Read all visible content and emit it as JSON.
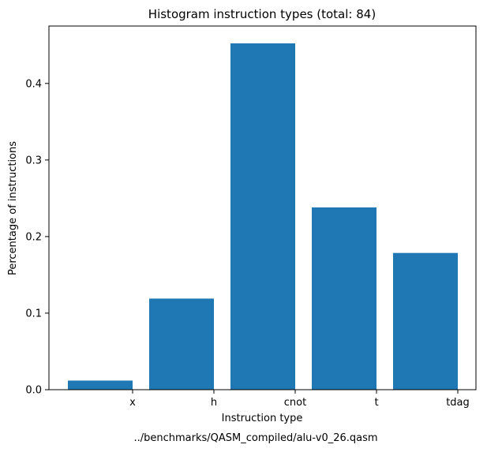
{
  "chart_data": {
    "type": "bar",
    "title": "Histogram instruction types (total: 84)",
    "xlabel": "Instruction type",
    "ylabel": "Percentage of instructions",
    "caption": "../benchmarks/QASM_compiled/alu-v0_26.qasm",
    "categories": [
      "x",
      "h",
      "cnot",
      "t",
      "tdag"
    ],
    "values": [
      0.0119,
      0.119,
      0.4524,
      0.2381,
      0.1786
    ],
    "ylim": [
      0,
      0.475
    ],
    "yticks": [
      0.0,
      0.1,
      0.2,
      0.3,
      0.4
    ],
    "ytick_labels": [
      "0.0",
      "0.1",
      "0.2",
      "0.3",
      "0.4"
    ],
    "bar_color": "#1f77b4",
    "grid": false,
    "legend": "none"
  }
}
